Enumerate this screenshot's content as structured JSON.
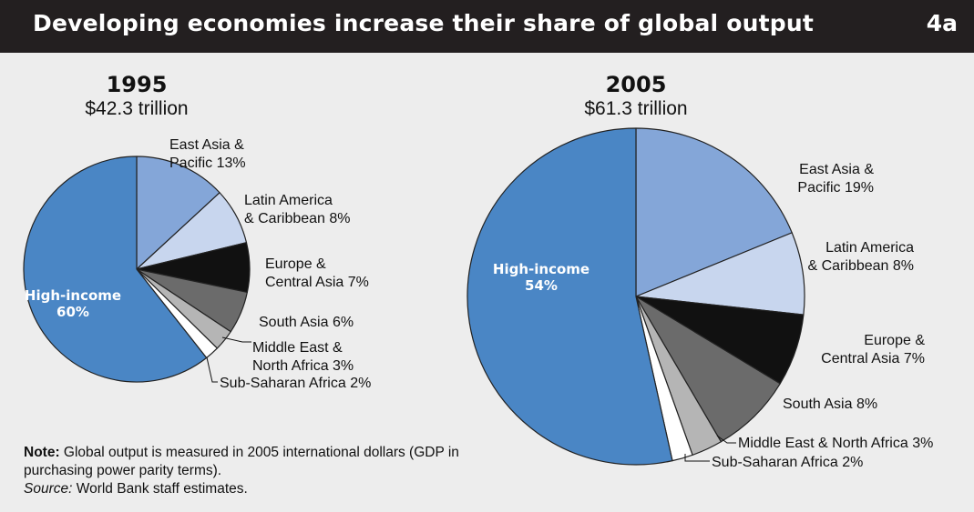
{
  "header": {
    "title": "Developing economies increase their share of global output",
    "figure_number": "4a"
  },
  "note": {
    "label": "Note:",
    "text": "Global output is measured in 2005 international dollars (GDP in purchasing power parity terms).",
    "source_label": "Source:",
    "source_text": "World Bank staff estimates."
  },
  "colors": {
    "header_bg": "#231f20",
    "panel_bg": "#ededed",
    "high_income": "#4a86c5",
    "east_asia": "#84a6d8",
    "latin_america": "#c8d6ee",
    "europe_central_asia": "#111111",
    "south_asia": "#6b6b6b",
    "middle_east": "#b5b5b5",
    "sub_saharan": "#ffffff"
  },
  "chart_data": [
    {
      "type": "pie",
      "title": "1995",
      "subtitle": "$42.3 trillion",
      "slices": [
        {
          "name": "East Asia & Pacific",
          "value": 13,
          "label_lines": [
            "East Asia &",
            "Pacific 13%"
          ],
          "color": "#84a6d8"
        },
        {
          "name": "Latin America & Caribbean",
          "value": 8,
          "label_lines": [
            "Latin America",
            "& Caribbean 8%"
          ],
          "color": "#c8d6ee"
        },
        {
          "name": "Europe & Central Asia",
          "value": 7,
          "label_lines": [
            "Europe &",
            "Central Asia 7%"
          ],
          "color": "#111111"
        },
        {
          "name": "South Asia",
          "value": 6,
          "label_lines": [
            "South Asia 6%"
          ],
          "color": "#6b6b6b"
        },
        {
          "name": "Middle East & North Africa",
          "value": 3,
          "label_lines": [
            "Middle East &",
            "North Africa 3%"
          ],
          "color": "#b5b5b5"
        },
        {
          "name": "Sub-Saharan Africa",
          "value": 2,
          "label_lines": [
            "Sub-Saharan Africa 2%"
          ],
          "color": "#ffffff"
        },
        {
          "name": "High-income",
          "value": 60,
          "label_lines": [
            "High-income",
            "60%"
          ],
          "color": "#4a86c5",
          "label_inside": true
        }
      ]
    },
    {
      "type": "pie",
      "title": "2005",
      "subtitle": "$61.3 trillion",
      "slices": [
        {
          "name": "East Asia & Pacific",
          "value": 19,
          "label_lines": [
            "East Asia &",
            "Pacific 19%"
          ],
          "color": "#84a6d8"
        },
        {
          "name": "Latin America & Caribbean",
          "value": 8,
          "label_lines": [
            "Latin America",
            "& Caribbean 8%"
          ],
          "color": "#c8d6ee"
        },
        {
          "name": "Europe & Central Asia",
          "value": 7,
          "label_lines": [
            "Europe &",
            "Central Asia 7%"
          ],
          "color": "#111111"
        },
        {
          "name": "South Asia",
          "value": 8,
          "label_lines": [
            "South Asia 8%"
          ],
          "color": "#6b6b6b"
        },
        {
          "name": "Middle East & North Africa",
          "value": 3,
          "label_lines": [
            "Middle East & North Africa 3%"
          ],
          "color": "#b5b5b5"
        },
        {
          "name": "Sub-Saharan Africa",
          "value": 2,
          "label_lines": [
            "Sub-Saharan Africa 2%"
          ],
          "color": "#ffffff"
        },
        {
          "name": "High-income",
          "value": 54,
          "label_lines": [
            "High-income",
            "54%"
          ],
          "color": "#4a86c5",
          "label_inside": true
        }
      ]
    }
  ]
}
